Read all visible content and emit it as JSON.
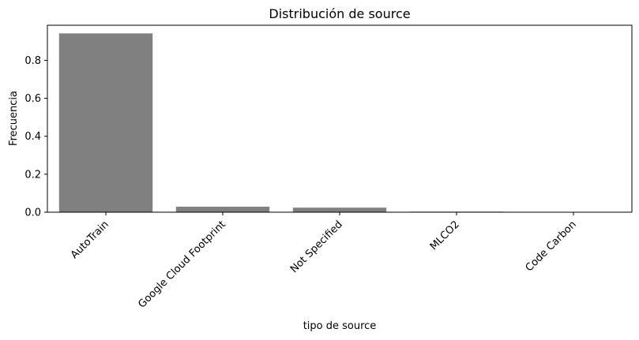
{
  "chart_data": {
    "type": "bar",
    "title": "Distribución de source",
    "xlabel": "tipo de source",
    "ylabel": "Frecuencia",
    "categories": [
      "AutoTrain",
      "Google Cloud Footprint",
      "Not Specified",
      "MLCO2",
      "Code Carbon"
    ],
    "values": [
      0.942,
      0.029,
      0.024,
      0.003,
      0.002
    ],
    "ylim": [
      0,
      0.9849
    ],
    "yticks": [
      0.0,
      0.2,
      0.4,
      0.6,
      0.8
    ],
    "ytick_labels": [
      "0.0",
      "0.2",
      "0.4",
      "0.6",
      "0.8"
    ],
    "grid": false,
    "bar_color": "#808080"
  }
}
